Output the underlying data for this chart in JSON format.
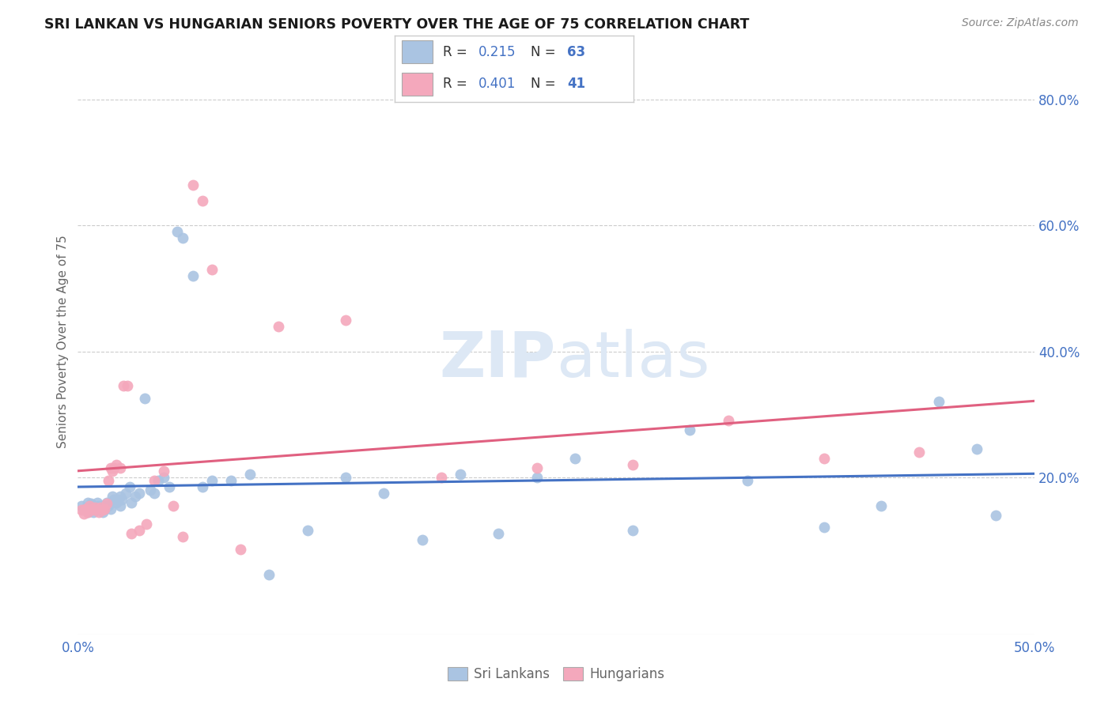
{
  "title": "SRI LANKAN VS HUNGARIAN SENIORS POVERTY OVER THE AGE OF 75 CORRELATION CHART",
  "source": "Source: ZipAtlas.com",
  "ylabel": "Seniors Poverty Over the Age of 75",
  "xlim": [
    0.0,
    0.5
  ],
  "ylim": [
    -0.05,
    0.88
  ],
  "ytick_labels": [
    "20.0%",
    "40.0%",
    "60.0%",
    "80.0%"
  ],
  "ytick_vals": [
    0.2,
    0.4,
    0.6,
    0.8
  ],
  "xtick_labels": [
    "0.0%",
    "50.0%"
  ],
  "xtick_vals": [
    0.0,
    0.5
  ],
  "sri_lankans_R": 0.215,
  "sri_lankans_N": 63,
  "hungarians_R": 0.401,
  "hungarians_N": 41,
  "sri_lankans_color": "#aac4e2",
  "hungarians_color": "#f4a8bc",
  "sri_lankans_line_color": "#4472c4",
  "hungarians_line_color": "#e06080",
  "watermark_color": "#dde8f5",
  "background_color": "#ffffff",
  "grid_color": "#cccccc",
  "tick_color": "#4472c4",
  "label_color": "#666666",
  "sri_lankans_x": [
    0.002,
    0.003,
    0.004,
    0.005,
    0.005,
    0.006,
    0.007,
    0.007,
    0.008,
    0.008,
    0.009,
    0.01,
    0.01,
    0.011,
    0.012,
    0.013,
    0.013,
    0.014,
    0.015,
    0.016,
    0.017,
    0.018,
    0.019,
    0.02,
    0.021,
    0.022,
    0.022,
    0.023,
    0.025,
    0.027,
    0.028,
    0.03,
    0.032,
    0.035,
    0.038,
    0.04,
    0.042,
    0.045,
    0.048,
    0.052,
    0.055,
    0.06,
    0.065,
    0.07,
    0.08,
    0.09,
    0.1,
    0.12,
    0.14,
    0.16,
    0.18,
    0.2,
    0.22,
    0.24,
    0.26,
    0.29,
    0.32,
    0.35,
    0.39,
    0.42,
    0.45,
    0.47,
    0.48
  ],
  "sri_lankans_y": [
    0.155,
    0.148,
    0.15,
    0.145,
    0.16,
    0.152,
    0.148,
    0.158,
    0.145,
    0.155,
    0.15,
    0.148,
    0.16,
    0.155,
    0.15,
    0.145,
    0.155,
    0.15,
    0.16,
    0.155,
    0.15,
    0.17,
    0.165,
    0.16,
    0.165,
    0.155,
    0.17,
    0.165,
    0.175,
    0.185,
    0.16,
    0.17,
    0.175,
    0.325,
    0.18,
    0.175,
    0.195,
    0.2,
    0.185,
    0.59,
    0.58,
    0.52,
    0.185,
    0.195,
    0.195,
    0.205,
    0.045,
    0.115,
    0.2,
    0.175,
    0.1,
    0.205,
    0.11,
    0.2,
    0.23,
    0.115,
    0.275,
    0.195,
    0.12,
    0.155,
    0.32,
    0.245,
    0.14
  ],
  "hungarians_x": [
    0.002,
    0.003,
    0.004,
    0.005,
    0.006,
    0.007,
    0.008,
    0.009,
    0.01,
    0.011,
    0.012,
    0.013,
    0.014,
    0.015,
    0.016,
    0.017,
    0.018,
    0.019,
    0.02,
    0.022,
    0.024,
    0.026,
    0.028,
    0.032,
    0.036,
    0.04,
    0.045,
    0.05,
    0.055,
    0.06,
    0.065,
    0.07,
    0.085,
    0.105,
    0.14,
    0.19,
    0.24,
    0.29,
    0.34,
    0.39,
    0.44
  ],
  "hungarians_y": [
    0.148,
    0.142,
    0.15,
    0.145,
    0.155,
    0.15,
    0.148,
    0.152,
    0.15,
    0.145,
    0.152,
    0.148,
    0.15,
    0.158,
    0.195,
    0.215,
    0.21,
    0.215,
    0.22,
    0.215,
    0.345,
    0.345,
    0.11,
    0.115,
    0.125,
    0.195,
    0.21,
    0.155,
    0.105,
    0.665,
    0.64,
    0.53,
    0.085,
    0.44,
    0.45,
    0.2,
    0.215,
    0.22,
    0.29,
    0.23,
    0.24
  ]
}
